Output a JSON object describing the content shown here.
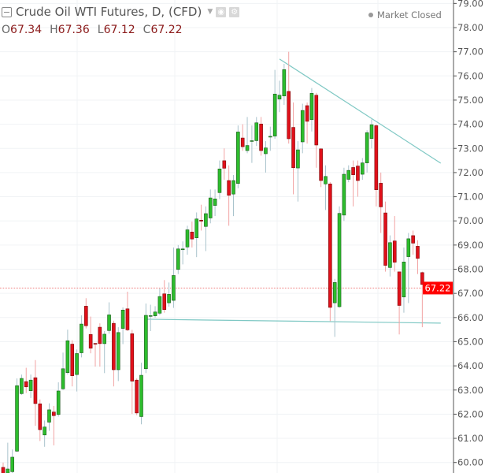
{
  "header": {
    "title": "Crude Oil WTI Futures, D, (CFD)",
    "icons": [
      "collapse-icon",
      "caret-down-icon",
      "visibility-icon",
      "gear-icon"
    ],
    "ohlc": [
      {
        "key": "O",
        "value": "67.34"
      },
      {
        "key": "H",
        "value": "67.36"
      },
      {
        "key": "L",
        "value": "67.12"
      },
      {
        "key": "C",
        "value": "67.22"
      }
    ]
  },
  "market_status": "Market Closed",
  "chart_data": {
    "type": "candlestick",
    "title": "Crude Oil WTI Futures, D, (CFD)",
    "x_unit": "bar index (daily)",
    "ylim": [
      59.9,
      79.15
    ],
    "y_ticks": [
      "79.00",
      "78.00",
      "77.00",
      "76.00",
      "75.00",
      "74.00",
      "73.00",
      "72.00",
      "71.00",
      "70.00",
      "69.00",
      "68.00",
      "67.00",
      "66.00",
      "65.00",
      "64.00",
      "63.00",
      "62.00",
      "61.00",
      "60.00"
    ],
    "grid": true,
    "last_price": {
      "value": 67.22,
      "label": "67.22",
      "color": "#ff0000"
    },
    "colors": {
      "up": "#2dbd2d",
      "down": "#e0101a",
      "up_border": "#1a5c1a",
      "down_border": "#7a0a0a",
      "trendline": "#7fc8c4"
    },
    "candles_ohlc": [
      [
        59.8,
        60.0,
        59.3,
        59.5
      ],
      [
        59.56,
        60.82,
        59.4,
        59.73
      ],
      [
        59.62,
        60.54,
        59.5,
        60.22
      ],
      [
        60.47,
        63.48,
        60.44,
        63.18
      ],
      [
        62.85,
        63.64,
        62.8,
        63.48
      ],
      [
        63.35,
        63.92,
        62.88,
        63.13
      ],
      [
        62.97,
        63.64,
        62.67,
        63.41
      ],
      [
        63.51,
        64.24,
        61.52,
        62.44
      ],
      [
        62.43,
        62.61,
        60.89,
        61.36
      ],
      [
        61.14,
        61.74,
        60.65,
        61.47
      ],
      [
        61.67,
        62.45,
        61.31,
        62.18
      ],
      [
        62.09,
        62.34,
        60.71,
        61.94
      ],
      [
        61.99,
        63.32,
        61.9,
        62.96
      ],
      [
        63.05,
        64.55,
        63.0,
        63.88
      ],
      [
        63.72,
        65.5,
        63.64,
        65.04
      ],
      [
        64.9,
        65.06,
        63.15,
        63.59
      ],
      [
        63.64,
        64.68,
        62.94,
        64.51
      ],
      [
        64.54,
        66.09,
        64.35,
        65.73
      ],
      [
        66.47,
        66.8,
        65.55,
        65.66
      ],
      [
        65.3,
        66.04,
        64.52,
        64.73
      ],
      [
        64.93,
        64.95,
        63.97,
        64.92
      ],
      [
        65.6,
        65.76,
        63.97,
        64.92
      ],
      [
        64.92,
        65.44,
        63.7,
        65.31
      ],
      [
        65.46,
        66.63,
        65.33,
        66.11
      ],
      [
        65.76,
        65.87,
        63.15,
        63.84
      ],
      [
        63.84,
        65.6,
        63.37,
        65.38
      ],
      [
        65.55,
        66.42,
        64.9,
        66.31
      ],
      [
        66.36,
        67.07,
        65.44,
        65.49
      ],
      [
        65.33,
        65.49,
        62.01,
        63.37
      ],
      [
        63.41,
        63.48,
        61.96,
        62.05
      ],
      [
        61.9,
        64.13,
        61.58,
        63.61
      ],
      [
        63.88,
        66.58,
        63.7,
        66.09
      ],
      [
        66.07,
        66.53,
        65.44,
        66.08
      ],
      [
        66.07,
        66.47,
        66.0,
        66.23
      ],
      [
        66.18,
        67.2,
        66.1,
        66.87
      ],
      [
        66.98,
        67.55,
        66.2,
        66.33
      ],
      [
        66.61,
        67.45,
        66.45,
        66.96
      ],
      [
        66.71,
        68.9,
        66.4,
        67.74
      ],
      [
        67.99,
        69.0,
        67.8,
        68.84
      ],
      [
        68.83,
        69.15,
        68.2,
        68.84
      ],
      [
        68.92,
        69.8,
        68.6,
        69.63
      ],
      [
        69.54,
        69.97,
        68.9,
        69.25
      ],
      [
        69.3,
        70.35,
        68.5,
        70.08
      ],
      [
        70.03,
        70.67,
        69.6,
        69.99
      ],
      [
        69.77,
        70.6,
        68.75,
        70.3
      ],
      [
        70.12,
        71.3,
        69.9,
        70.95
      ],
      [
        70.64,
        71.3,
        70.2,
        70.91
      ],
      [
        71.17,
        72.5,
        70.9,
        72.15
      ],
      [
        72.49,
        73.0,
        71.7,
        72.18
      ],
      [
        71.67,
        72.3,
        69.8,
        71.06
      ],
      [
        71.11,
        71.9,
        70.2,
        71.67
      ],
      [
        71.55,
        73.95,
        71.35,
        73.68
      ],
      [
        73.43,
        74.0,
        72.9,
        73.07
      ],
      [
        72.91,
        74.3,
        72.8,
        73.12
      ],
      [
        73.3,
        73.95,
        72.4,
        73.32
      ],
      [
        73.32,
        74.3,
        73.1,
        74.06
      ],
      [
        74.01,
        74.3,
        72.7,
        72.91
      ],
      [
        72.78,
        73.3,
        72.0,
        73.02
      ],
      [
        73.49,
        73.9,
        72.9,
        73.5
      ],
      [
        73.51,
        76.25,
        73.4,
        75.25
      ],
      [
        75.04,
        75.8,
        74.5,
        75.2
      ],
      [
        75.17,
        76.5,
        74.8,
        76.26
      ],
      [
        75.36,
        77.0,
        73.2,
        73.4
      ],
      [
        73.87,
        74.9,
        71.1,
        72.2
      ],
      [
        72.19,
        73.3,
        70.8,
        72.94
      ],
      [
        73.27,
        74.85,
        72.8,
        74.57
      ],
      [
        74.77,
        74.9,
        73.2,
        74.12
      ],
      [
        74.19,
        75.5,
        73.7,
        75.28
      ],
      [
        75.2,
        75.3,
        72.2,
        73.14
      ],
      [
        72.98,
        73.0,
        71.4,
        71.67
      ],
      [
        71.53,
        72.3,
        70.45,
        71.84
      ],
      [
        71.53,
        71.6,
        65.85,
        66.42
      ],
      [
        66.61,
        67.6,
        65.2,
        67.45
      ],
      [
        66.45,
        70.6,
        66.4,
        70.31
      ],
      [
        70.24,
        72.2,
        70.0,
        71.93
      ],
      [
        71.72,
        72.3,
        71.6,
        72.09
      ],
      [
        72.21,
        72.5,
        70.6,
        71.91
      ],
      [
        72.27,
        72.5,
        71.0,
        71.67
      ],
      [
        71.93,
        72.6,
        71.7,
        72.4
      ],
      [
        72.4,
        73.75,
        72.0,
        73.65
      ],
      [
        73.41,
        74.2,
        73.0,
        73.98
      ],
      [
        73.94,
        74.0,
        70.6,
        71.29
      ],
      [
        71.56,
        72.0,
        69.5,
        70.58
      ],
      [
        70.33,
        70.8,
        67.9,
        68.16
      ],
      [
        68.07,
        69.4,
        67.7,
        69.1
      ],
      [
        69.17,
        70.2,
        67.9,
        68.29
      ],
      [
        67.89,
        67.9,
        65.3,
        66.5
      ],
      [
        66.85,
        68.9,
        66.2,
        68.3
      ],
      [
        68.52,
        69.5,
        66.6,
        69.26
      ],
      [
        69.39,
        69.6,
        68.6,
        69.08
      ],
      [
        68.95,
        69.2,
        67.8,
        68.45
      ],
      [
        67.86,
        67.9,
        65.6,
        67.37
      ],
      [
        67.34,
        67.36,
        67.12,
        67.22
      ]
    ],
    "trendlines": [
      {
        "from": [
          61,
          76.7
        ],
        "to": [
          96,
          72.39
        ]
      },
      {
        "from": [
          32,
          65.93
        ],
        "to": [
          96,
          65.77
        ]
      }
    ]
  }
}
